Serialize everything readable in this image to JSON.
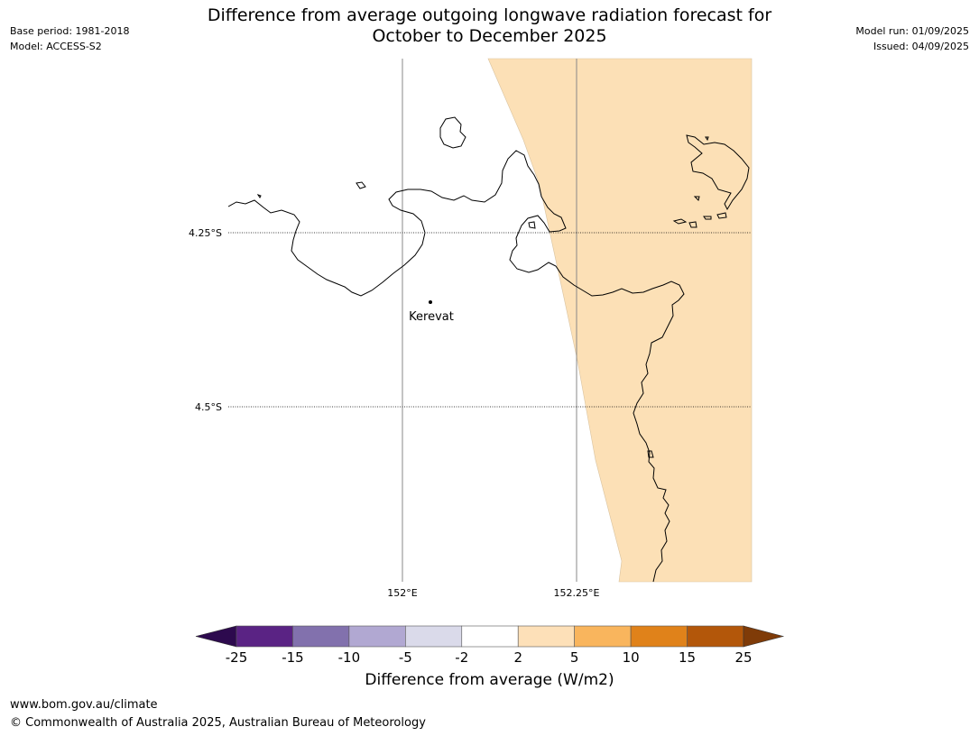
{
  "title": {
    "line1": "Difference from average outgoing longwave radiation forecast for",
    "line2": "October to December 2025"
  },
  "meta": {
    "base_period": "Base period: 1981-2018",
    "model": "Model: ACCESS-S2",
    "model_run": "Model run: 01/09/2025",
    "issued": "Issued: 04/09/2025"
  },
  "map": {
    "lat_labels": [
      "4.25°S",
      "4.5°S"
    ],
    "lon_labels": [
      "152°E",
      "152.25°E"
    ],
    "place": "Kerevat",
    "fill_color": "#fce0b6",
    "coast_color": "#000000"
  },
  "colorbar": {
    "label": "Difference from average (W/m2)",
    "ticks": [
      "-25",
      "-15",
      "-10",
      "-5",
      "-2",
      "2",
      "5",
      "10",
      "15",
      "25"
    ],
    "colors": [
      "#2d0a4e",
      "#5a2384",
      "#8271ad",
      "#b1a8d2",
      "#dadaea",
      "#ffffff",
      "#fde0b8",
      "#f9b55d",
      "#e0821a",
      "#b3570a",
      "#7f3b08"
    ]
  },
  "footer": {
    "url": "www.bom.gov.au/climate",
    "copyright": "© Commonwealth of Australia 2025, Australian Bureau of Meteorology"
  }
}
